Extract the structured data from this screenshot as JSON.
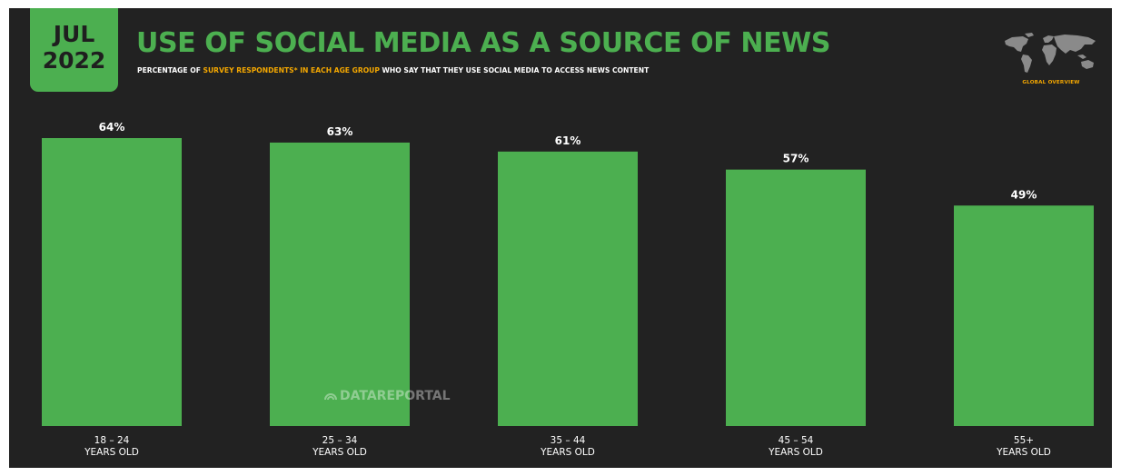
{
  "header": {
    "date_month": "JUL",
    "date_year": "2022",
    "title": "USE OF SOCIAL MEDIA AS A SOURCE OF NEWS",
    "subtitle_pre": "PERCENTAGE OF ",
    "subtitle_highlight": "SURVEY RESPONDENTS* IN EACH AGE GROUP",
    "subtitle_post": " WHO SAY THAT THEY USE SOCIAL MEDIA TO ACCESS NEWS CONTENT",
    "logo_label": "GLOBAL OVERVIEW",
    "logo_icon": "world-map-icon"
  },
  "watermark": {
    "text_a": "DATA",
    "text_b": "REPORTAL",
    "icon": "datareportal-logo-icon"
  },
  "colors": {
    "background": "#222222",
    "accent": "#4caf50",
    "highlight": "#f5a800",
    "text": "#ffffff"
  },
  "chart_data": {
    "type": "bar",
    "categories": [
      "18 – 24",
      "25 – 34",
      "35 – 44",
      "45 – 54",
      "55+"
    ],
    "category_sublabel": "YEARS OLD",
    "values": [
      64,
      63,
      61,
      57,
      49
    ],
    "value_labels": [
      "64%",
      "63%",
      "61%",
      "57%",
      "49%"
    ],
    "title": "USE OF SOCIAL MEDIA AS A SOURCE OF NEWS",
    "xlabel": "",
    "ylabel": "",
    "ylim": [
      0,
      64
    ],
    "grid": false,
    "legend": "none",
    "bar_color": "#4caf50"
  }
}
